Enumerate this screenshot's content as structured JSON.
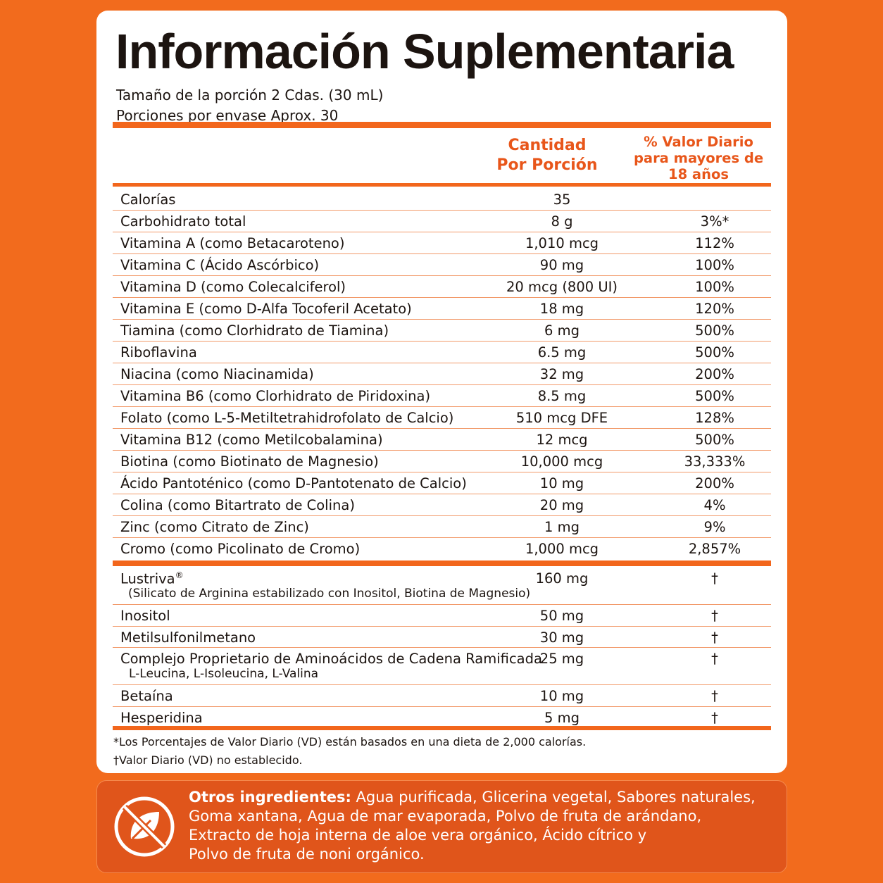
{
  "header": {
    "title": "Información Suplementaria",
    "serving_size": "Tamaño de la porción 2 Cdas. (30 mL)",
    "servings": "Porciones por envase Aprox. 30"
  },
  "table": {
    "col_amount": [
      "Cantidad",
      "Por Porción"
    ],
    "col_dv": [
      "% Valor Diario",
      "para mayores de",
      "18 años"
    ],
    "rows": [
      {
        "name": "Calorías",
        "amount": "35",
        "dv": ""
      },
      {
        "name": "Carbohidrato total",
        "amount": "8 g",
        "dv": "3%*"
      },
      {
        "name": "Vitamina A (como Betacaroteno)",
        "amount": "1,010 mcg",
        "dv": "112%"
      },
      {
        "name": "Vitamina C (Ácido Ascórbico)",
        "amount": "90 mg",
        "dv": "100%"
      },
      {
        "name": "Vitamina D (como Colecalciferol)",
        "amount": "20 mcg (800 UI)",
        "dv": "100%"
      },
      {
        "name": "Vitamina E (como D-Alfa Tocoferil Acetato)",
        "amount": "18 mg",
        "dv": "120%"
      },
      {
        "name": "Tiamina (como Clorhidrato de Tiamina)",
        "amount": "6 mg",
        "dv": "500%"
      },
      {
        "name": "Riboflavina",
        "amount": "6.5 mg",
        "dv": "500%"
      },
      {
        "name": "Niacina (como Niacinamida)",
        "amount": "32 mg",
        "dv": "200%"
      },
      {
        "name": "Vitamina B6 (como Clorhidrato de Piridoxina)",
        "amount": "8.5 mg",
        "dv": "500%"
      },
      {
        "name": "Folato (como L-5-Metiltetrahidrofolato de Calcio)",
        "amount": "510 mcg DFE",
        "dv": "128%"
      },
      {
        "name": "Vitamina B12 (como Metilcobalamina)",
        "amount": "12 mcg",
        "dv": "500%"
      },
      {
        "name": "Biotina (como Biotinato de Magnesio)",
        "amount": "10,000 mcg",
        "dv": "33,333%"
      },
      {
        "name": "Ácido Pantoténico (como D-Pantotenato de Calcio)",
        "amount": "10 mg",
        "dv": "200%"
      },
      {
        "name": "Colina (como Bitartrato de Colina)",
        "amount": "20 mg",
        "dv": "4%"
      },
      {
        "name": "Zinc (como Citrato de Zinc)",
        "amount": "1 mg",
        "dv": "9%"
      },
      {
        "name": "Cromo (como Picolinato de Cromo)",
        "amount": "1,000 mcg",
        "dv": "2,857%"
      }
    ],
    "rows2": [
      {
        "name": "Lustriva",
        "sup": "®",
        "sub": "(Silicato de Arginina estabilizado con Inositol, Biotina de Magnesio)",
        "amount": "160 mg",
        "dv": "†"
      },
      {
        "name": "Inositol",
        "amount": "50 mg",
        "dv": "†"
      },
      {
        "name": "Metilsulfonilmetano",
        "amount": "30 mg",
        "dv": "†"
      },
      {
        "name": "Complejo Proprietario de Aminoácidos de Cadena Ramificada",
        "sub": "L-Leucina, L-Isoleucina, L-Valina",
        "amount": "25 mg",
        "dv": "†"
      },
      {
        "name": "Betaína",
        "amount": "10 mg",
        "dv": "†"
      },
      {
        "name": "Hesperidina",
        "amount": "5 mg",
        "dv": "†"
      }
    ]
  },
  "footnotes": [
    "*Los Porcentajes de Valor Diario (VD) están basados en una dieta de 2,000 calorías.",
    "†Valor Diario (VD) no establecido."
  ],
  "other": {
    "label": "Otros ingredientes:",
    "lines": [
      " Agua purificada, Glicerina vegetal, Sabores naturales,",
      "Goma xantana, Agua de mar evaporada, Polvo de fruta de arándano,",
      "Extracto de hoja interna de aloe vera orgánico, Ácido cítrico y",
      "Polvo de fruta de noni orgánico."
    ]
  }
}
